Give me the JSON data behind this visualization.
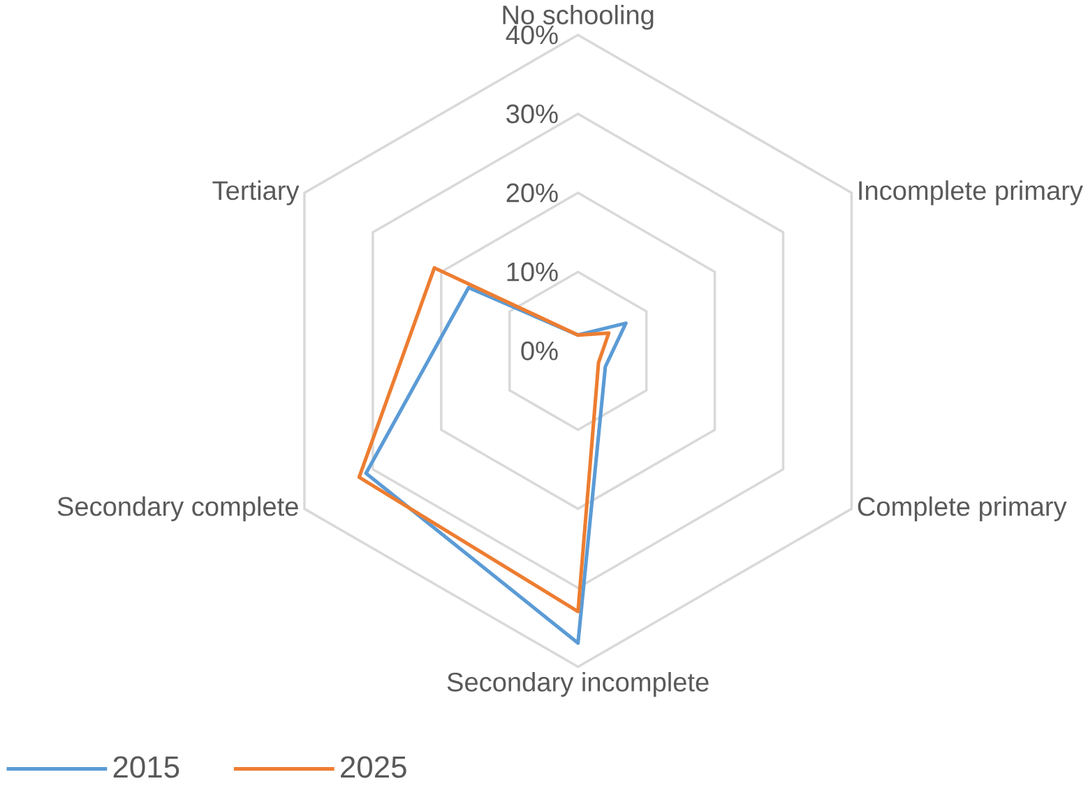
{
  "chart_data": {
    "type": "radar",
    "categories": [
      "No schooling",
      "Incomplete primary",
      "Complete primary",
      "Secondary incomplete",
      "Secondary complete",
      "Tertiary"
    ],
    "series": [
      {
        "name": "2015",
        "color": "#5b9bd5",
        "values": [
          2,
          7,
          4,
          37,
          31,
          16
        ]
      },
      {
        "name": "2025",
        "color": "#ed7d31",
        "values": [
          2,
          4.5,
          3,
          33,
          32,
          21
        ]
      }
    ],
    "ylim": [
      0,
      40
    ],
    "yticks": [
      {
        "value": 0,
        "label": "0%"
      },
      {
        "value": 10,
        "label": "10%"
      },
      {
        "value": 20,
        "label": "20%"
      },
      {
        "value": 30,
        "label": "30%"
      },
      {
        "value": 40,
        "label": "40%"
      }
    ],
    "grid": true,
    "legend": "bottom left"
  }
}
